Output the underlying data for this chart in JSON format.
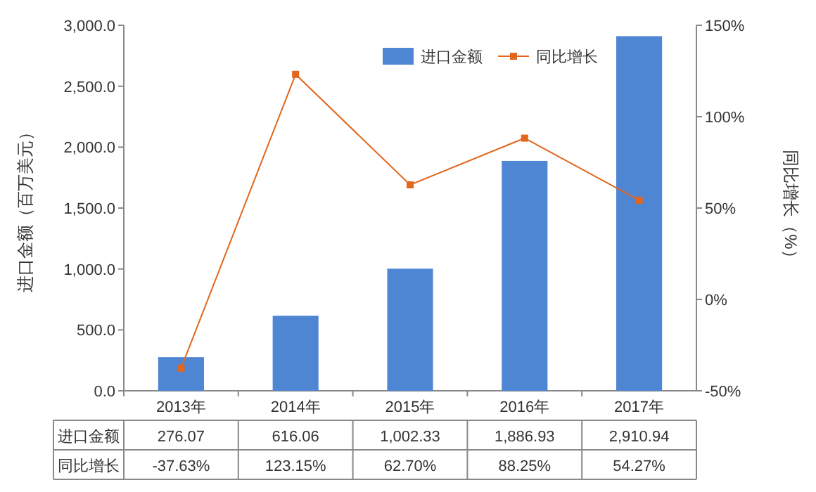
{
  "chart_data": {
    "type": "bar",
    "categories": [
      "2013年",
      "2014年",
      "2015年",
      "2016年",
      "2017年"
    ],
    "series": [
      {
        "name": "进口金额",
        "color": "#4f86d4",
        "values": [
          276.07,
          616.06,
          1002.33,
          1886.93,
          2910.94
        ],
        "value_labels": [
          "276.07",
          "616.06",
          "1,002.33",
          "1,886.93",
          "2,910.94"
        ]
      },
      {
        "name": "同比增长",
        "type": "line",
        "axis": "y2",
        "marker": "square",
        "color": "#e2661c",
        "values": [
          -37.63,
          123.15,
          62.7,
          88.25,
          54.27
        ],
        "value_labels": [
          "-37.63%",
          "123.15%",
          "62.70%",
          "88.25%",
          "54.27%"
        ]
      }
    ],
    "data_labels": true,
    "ylabel": "进口金额（百万美元）",
    "y2label": "同比增长（%）",
    "ylim": [
      0,
      3000
    ],
    "yticks": [
      {
        "value": 0,
        "label": "0.0"
      },
      {
        "value": 500,
        "label": "500.0"
      },
      {
        "value": 1000,
        "label": "1,000.0"
      },
      {
        "value": 1500,
        "label": "1,500.0"
      },
      {
        "value": 2000,
        "label": "2,000.0"
      },
      {
        "value": 2500,
        "label": "2,500.0"
      },
      {
        "value": 3000,
        "label": "3,000.0"
      }
    ],
    "y2lim": [
      -50,
      150
    ],
    "y2ticks": [
      {
        "value": -50,
        "label": "-50%"
      },
      {
        "value": 0,
        "label": "0%"
      },
      {
        "value": 50,
        "label": "50%"
      },
      {
        "value": 100,
        "label": "100%"
      },
      {
        "value": 150,
        "label": "150%"
      }
    ],
    "legend": "top right"
  }
}
